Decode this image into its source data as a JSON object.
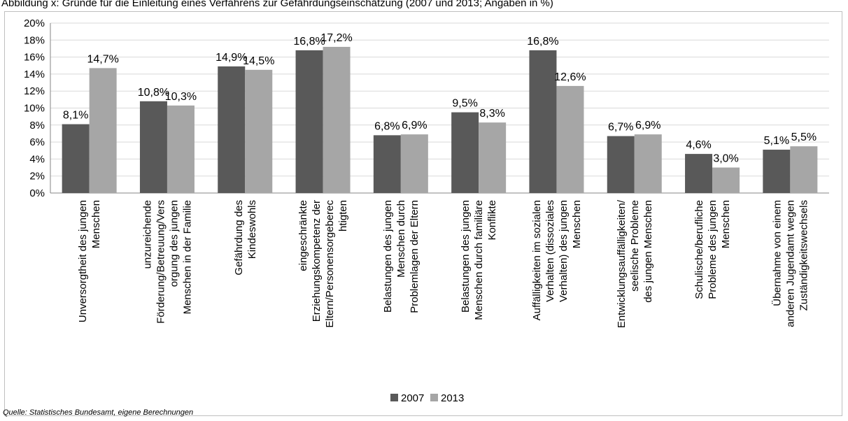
{
  "caption": "Abbildung x: Gründe für die Einleitung eines Verfahrens zur Gefährdungseinschätzung (2007 und 2013; Angaben in %)",
  "source": "Quelle: Statistisches Bundesamt, eigene Berechnungen",
  "chart_data": {
    "type": "bar",
    "ylim": [
      0,
      20
    ],
    "y_ticks": [
      "0%",
      "2%",
      "4%",
      "6%",
      "8%",
      "10%",
      "12%",
      "14%",
      "16%",
      "18%",
      "20%"
    ],
    "y_tick_values": [
      0,
      2,
      4,
      6,
      8,
      10,
      12,
      14,
      16,
      18,
      20
    ],
    "grid": true,
    "legend_position": "bottom",
    "categories": [
      [
        "Unversorgtheit des jungen",
        "Menschen"
      ],
      [
        "unzureichende",
        "Förderung/Betreuung/Vers",
        "orgung des jungen",
        "Menschen in der Familie"
      ],
      [
        "Gefährdung des",
        "Kindeswohls"
      ],
      [
        "eingeschränkte",
        "Erziehungskompetenz der",
        "Eltern/Personensorgeberec",
        "htigten"
      ],
      [
        "Belastungen des jungen",
        "Menschen durch",
        "Problemlagen der Eltern"
      ],
      [
        "Belastungen des jungen",
        "Menschen durch familiäre",
        "Konflikte"
      ],
      [
        "Auffälligkeiten im sozialen",
        "Verhalten (dissoziales",
        "Verhalten) des jungen",
        "Menschen"
      ],
      [
        "Entwicklungsauffälligkeiten/",
        "seelische Probleme",
        "des jungen Menschen"
      ],
      [
        "Schulische/berufliche",
        "Probleme des jungen",
        "Menschen"
      ],
      [
        "Übernahme von einem",
        "anderen Jugendamt wegen",
        "Zuständigkeitswechsels"
      ]
    ],
    "series": [
      {
        "name": "2007",
        "color": "#595959",
        "values": [
          8.1,
          10.8,
          14.9,
          16.8,
          6.8,
          9.5,
          16.8,
          6.7,
          4.6,
          5.1
        ],
        "labels": [
          "8,1%",
          "10,8%",
          "14,9%",
          "16,8%",
          "6,8%",
          "9,5%",
          "16,8%",
          "6,7%",
          "4,6%",
          "5,1%"
        ]
      },
      {
        "name": "2013",
        "color": "#a6a6a6",
        "values": [
          14.7,
          10.3,
          14.5,
          17.2,
          6.9,
          8.3,
          12.6,
          6.9,
          3.0,
          5.5
        ],
        "labels": [
          "14,7%",
          "10,3%",
          "14,5%",
          "17,2%",
          "6,9%",
          "8,3%",
          "12,6%",
          "6,9%",
          "3,0%",
          "5,5%"
        ]
      }
    ]
  }
}
